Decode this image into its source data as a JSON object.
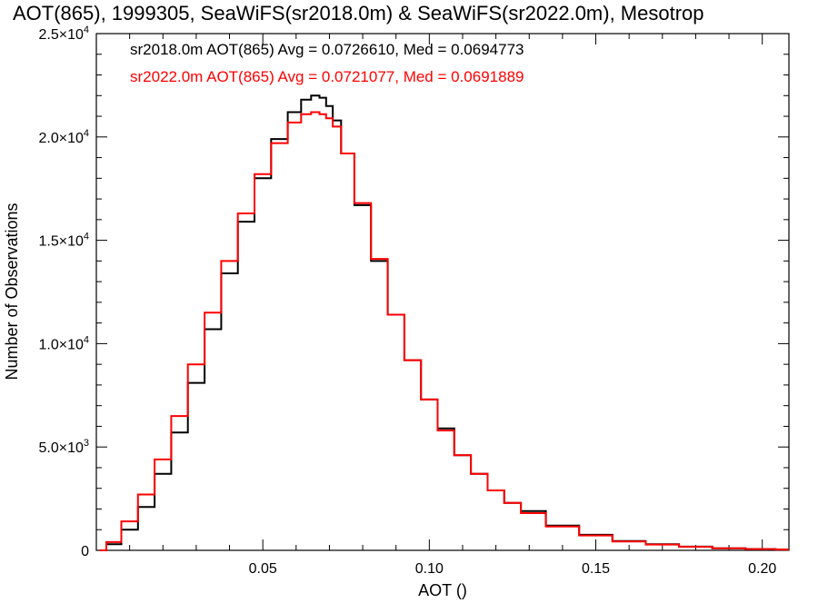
{
  "chart_data": {
    "type": "line",
    "title": "AOT(865), 1999305, SeaWiFS(sr2018.0m) & SeaWiFS(sr2022.0m), Mesotrop",
    "xlabel": "AOT ()",
    "ylabel": "Number of Observations",
    "xlim": [
      0.0,
      0.208
    ],
    "ylim": [
      0,
      25000
    ],
    "x_ticks": [
      0.05,
      0.1,
      0.15,
      0.2
    ],
    "x_tick_labels": [
      "0.05",
      "0.10",
      "0.15",
      "0.20"
    ],
    "y_ticks": [
      0,
      5000,
      10000,
      15000,
      20000,
      25000
    ],
    "y_tick_labels": [
      {
        "mant": "0",
        "exp": ""
      },
      {
        "mant": "5.0×10",
        "exp": "3"
      },
      {
        "mant": "1.0×10",
        "exp": "4"
      },
      {
        "mant": "1.5×10",
        "exp": "4"
      },
      {
        "mant": "2.0×10",
        "exp": "4"
      },
      {
        "mant": "2.5×10",
        "exp": "4"
      }
    ],
    "grid": false,
    "legend": [
      {
        "text": "sr2018.0m AOT(865) Avg = 0.0726610, Med = 0.0694773",
        "color": "#000000"
      },
      {
        "text": "sr2022.0m AOT(865) Avg = 0.0721077, Med = 0.0691889",
        "color": "#ff0000"
      }
    ],
    "series": [
      {
        "color": "#000000",
        "x": [
          0.001,
          0.005,
          0.01,
          0.015,
          0.02,
          0.025,
          0.03,
          0.035,
          0.04,
          0.045,
          0.05,
          0.055,
          0.06,
          0.063,
          0.066,
          0.068,
          0.07,
          0.072,
          0.075,
          0.08,
          0.085,
          0.09,
          0.095,
          0.1,
          0.105,
          0.11,
          0.115,
          0.12,
          0.125,
          0.13,
          0.14,
          0.15,
          0.16,
          0.17,
          0.18,
          0.19,
          0.2,
          0.208
        ],
        "y": [
          0,
          300,
          1000,
          2100,
          3700,
          5700,
          8100,
          10700,
          13400,
          15900,
          18000,
          19900,
          21200,
          21800,
          22000,
          21900,
          21500,
          20800,
          19200,
          16700,
          14000,
          11400,
          9200,
          7300,
          5900,
          4600,
          3700,
          2900,
          2300,
          1900,
          1200,
          750,
          450,
          300,
          180,
          100,
          60,
          40
        ]
      },
      {
        "color": "#ff0000",
        "x": [
          0.001,
          0.005,
          0.01,
          0.015,
          0.02,
          0.025,
          0.03,
          0.035,
          0.04,
          0.045,
          0.05,
          0.055,
          0.06,
          0.063,
          0.066,
          0.068,
          0.07,
          0.072,
          0.075,
          0.08,
          0.085,
          0.09,
          0.095,
          0.1,
          0.105,
          0.11,
          0.115,
          0.12,
          0.125,
          0.13,
          0.14,
          0.15,
          0.16,
          0.17,
          0.18,
          0.19,
          0.2,
          0.208
        ],
        "y": [
          0,
          400,
          1400,
          2700,
          4400,
          6500,
          9000,
          11500,
          14000,
          16300,
          18200,
          19700,
          20700,
          21100,
          21200,
          21100,
          20900,
          20500,
          19200,
          16800,
          14100,
          11400,
          9200,
          7300,
          5800,
          4600,
          3700,
          2900,
          2300,
          1800,
          1150,
          720,
          430,
          280,
          170,
          100,
          60,
          40
        ]
      }
    ]
  }
}
